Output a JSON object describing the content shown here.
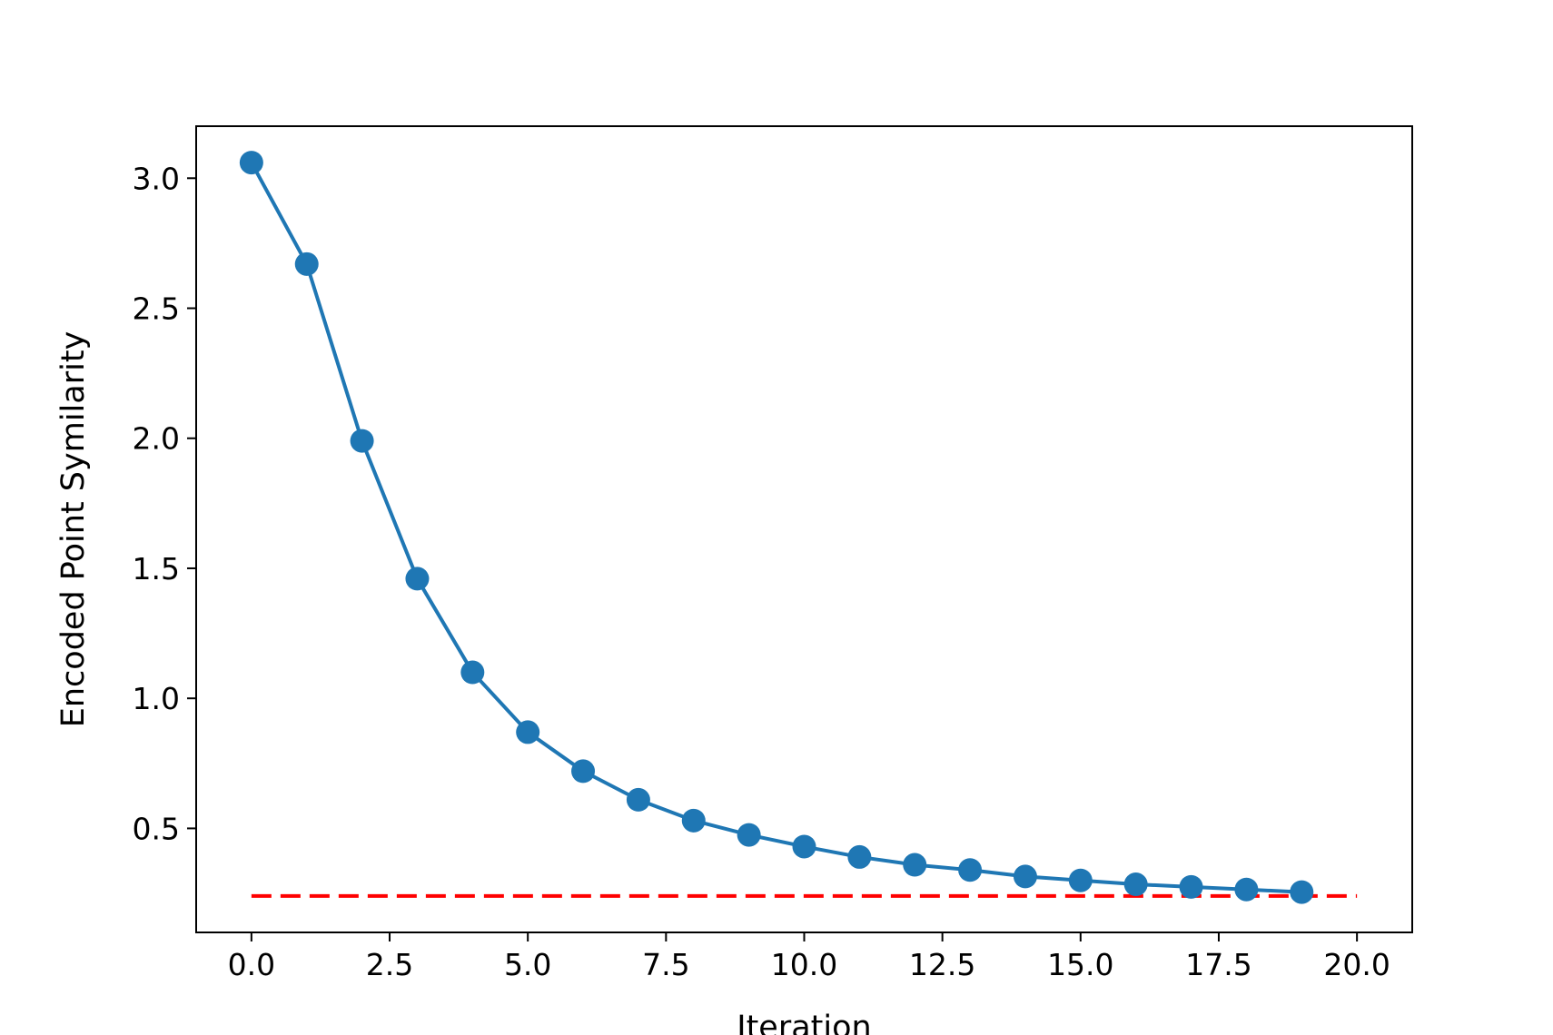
{
  "chart_data": {
    "type": "line",
    "title": "",
    "xlabel": "Iteration",
    "ylabel": "Encoded Point Symilarity",
    "xlim": [
      -1,
      21
    ],
    "ylim": [
      0.1,
      3.2
    ],
    "x_ticks": [
      0.0,
      2.5,
      5.0,
      7.5,
      10.0,
      12.5,
      15.0,
      17.5,
      20.0
    ],
    "x_tick_labels": [
      "0.0",
      "2.5",
      "5.0",
      "7.5",
      "10.0",
      "12.5",
      "15.0",
      "17.5",
      "20.0"
    ],
    "y_ticks": [
      0.5,
      1.0,
      1.5,
      2.0,
      2.5,
      3.0
    ],
    "y_tick_labels": [
      "0.5",
      "1.0",
      "1.5",
      "2.0",
      "2.5",
      "3.0"
    ],
    "grid": false,
    "series": [
      {
        "color": "#1f77b4",
        "marker": "circle",
        "x": [
          0,
          1,
          2,
          3,
          4,
          5,
          6,
          7,
          8,
          9,
          10,
          11,
          12,
          13,
          14,
          15,
          16,
          17,
          18,
          19
        ],
        "y": [
          3.06,
          2.67,
          1.99,
          1.46,
          1.1,
          0.87,
          0.72,
          0.61,
          0.53,
          0.475,
          0.43,
          0.39,
          0.36,
          0.34,
          0.315,
          0.3,
          0.285,
          0.275,
          0.265,
          0.255
        ]
      }
    ],
    "reference_line": {
      "y": 0.24,
      "x_range": [
        0,
        20
      ],
      "color": "#ff0000",
      "style": "dashed"
    }
  }
}
